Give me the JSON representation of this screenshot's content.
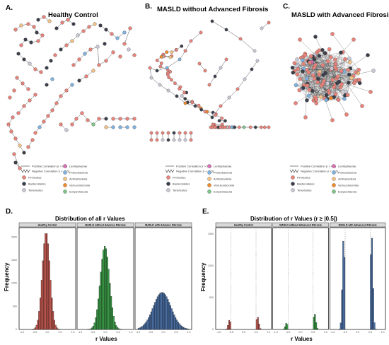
{
  "panels": {
    "A": {
      "letter": "A.",
      "title": "Healthy Control"
    },
    "B": {
      "letter": "B.",
      "title": "MASLD without Advanced Fibrosis"
    },
    "C": {
      "letter": "C.",
      "title": "MASLD with Advanced Fibrosis"
    },
    "D": {
      "letter": "D.",
      "title": "Distribution of all r Values"
    },
    "E": {
      "letter": "E.",
      "title": "Distribution of r Values (r ≥ |0.5|)"
    }
  },
  "legend": {
    "positive": "Positive Correlation (r > 0.5)",
    "negative": "Negative Correlation (r < -0.5)",
    "taxa": [
      {
        "name": "Firmicutes",
        "color": "#e8837a"
      },
      {
        "name": "Bacteroidetes",
        "color": "#3a3f4a"
      },
      {
        "name": "Tenericutes",
        "color": "#c9c9d6"
      },
      {
        "name": "Lentisphaerae",
        "color": "#d86fb6"
      },
      {
        "name": "Proteobacteria",
        "color": "#7fb2de"
      },
      {
        "name": "Actinobacteria",
        "color": "#f2c184"
      },
      {
        "name": "Verrucomicrobia",
        "color": "#f08a2c"
      },
      {
        "name": "Euryarchaeota",
        "color": "#7fc48a"
      }
    ]
  },
  "chart_data": [
    {
      "type": "bar",
      "title": "Distribution of all r Values",
      "xlabel": "r Values",
      "ylabel": "Frequency",
      "xlim": [
        -1.0,
        1.0
      ],
      "ylim": [
        0,
        2200
      ],
      "yticks": [
        "0",
        "500",
        "1000",
        "1500",
        "2000"
      ],
      "xticks": [
        "-1.0",
        "-0.5",
        "0.0",
        "0.5",
        "1.0"
      ],
      "facets": [
        {
          "name": "Healthy Control",
          "color": "#c0574f",
          "mean": -0.05,
          "sd": 0.15,
          "peak": 2100
        },
        {
          "name": "MASLD without Advance Fibrosis",
          "color": "#3a9a46",
          "mean": -0.02,
          "sd": 0.18,
          "peak": 1800
        },
        {
          "name": "MASLD with Advance Fibrosis",
          "color": "#4a6fa5",
          "mean": -0.05,
          "sd": 0.35,
          "peak": 800
        }
      ]
    },
    {
      "type": "bar",
      "title": "Distribution of r Values (r ≥ |0.5|)",
      "xlabel": "r Values",
      "ylabel": "Frequency",
      "xlim": [
        -1.0,
        1.0
      ],
      "ylim": [
        0,
        1600
      ],
      "yticks": [
        "0",
        "500",
        "1000",
        "1500"
      ],
      "xticks": [
        "-1.0",
        "-0.5",
        "0.0",
        "0.5",
        "1.0"
      ],
      "facets": [
        {
          "name": "Healthy Control",
          "color": "#c0574f",
          "peak_neg": 150,
          "peak_pos": 200
        },
        {
          "name": "MASLD without Advanced Fibrosis",
          "color": "#3a9a46",
          "peak_neg": 100,
          "peak_pos": 250
        },
        {
          "name": "MASLD with Advanced Fibrosis",
          "color": "#4a6fa5",
          "peak_neg": 1450,
          "peak_pos": 1500
        }
      ]
    }
  ]
}
